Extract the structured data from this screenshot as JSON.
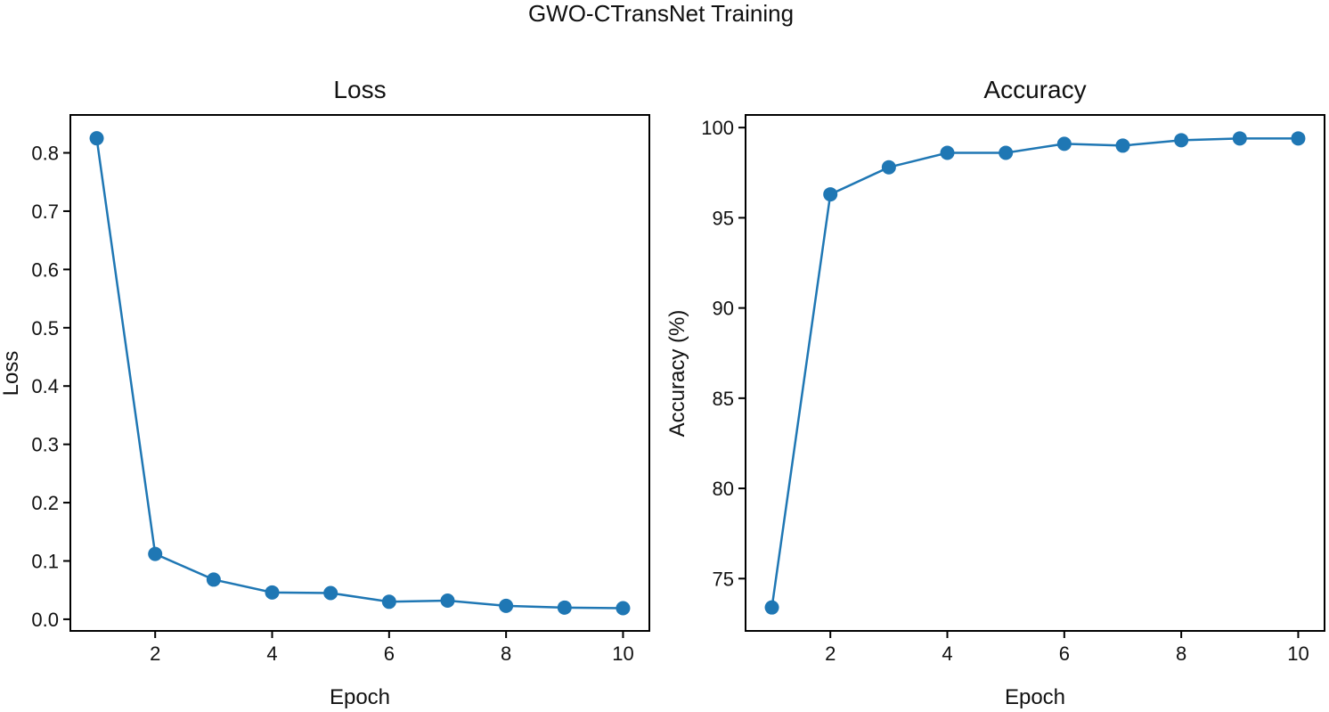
{
  "figure_title": "GWO-CTransNet Training",
  "series_color": "#1f77b4",
  "chart_data": [
    {
      "type": "line",
      "title": "Loss",
      "xlabel": "Epoch",
      "ylabel": "Loss",
      "x": [
        1,
        2,
        3,
        4,
        5,
        6,
        7,
        8,
        9,
        10
      ],
      "series": [
        {
          "name": "Loss",
          "values": [
            0.825,
            0.112,
            0.068,
            0.046,
            0.045,
            0.03,
            0.032,
            0.023,
            0.02,
            0.019
          ]
        }
      ],
      "xlim": [
        0.55,
        10.45
      ],
      "ylim": [
        -0.02,
        0.865
      ],
      "xticks": [
        2,
        4,
        6,
        8,
        10
      ],
      "xtick_labels": [
        "2",
        "4",
        "6",
        "8",
        "10"
      ],
      "yticks": [
        0.0,
        0.1,
        0.2,
        0.3,
        0.4,
        0.5,
        0.6,
        0.7,
        0.8
      ],
      "ytick_labels": [
        "0.0",
        "0.1",
        "0.2",
        "0.3",
        "0.4",
        "0.5",
        "0.6",
        "0.7",
        "0.8"
      ],
      "grid": false,
      "marker": "circle"
    },
    {
      "type": "line",
      "title": "Accuracy",
      "xlabel": "Epoch",
      "ylabel": "Accuracy (%)",
      "x": [
        1,
        2,
        3,
        4,
        5,
        6,
        7,
        8,
        9,
        10
      ],
      "series": [
        {
          "name": "Accuracy",
          "values": [
            73.4,
            96.3,
            97.8,
            98.6,
            98.6,
            99.1,
            99.0,
            99.3,
            99.4,
            99.4
          ]
        }
      ],
      "xlim": [
        0.55,
        10.45
      ],
      "ylim": [
        72.1,
        100.7
      ],
      "xticks": [
        2,
        4,
        6,
        8,
        10
      ],
      "xtick_labels": [
        "2",
        "4",
        "6",
        "8",
        "10"
      ],
      "yticks": [
        75,
        80,
        85,
        90,
        95,
        100
      ],
      "ytick_labels": [
        "75",
        "80",
        "85",
        "90",
        "95",
        "100"
      ],
      "grid": false,
      "marker": "circle"
    }
  ]
}
